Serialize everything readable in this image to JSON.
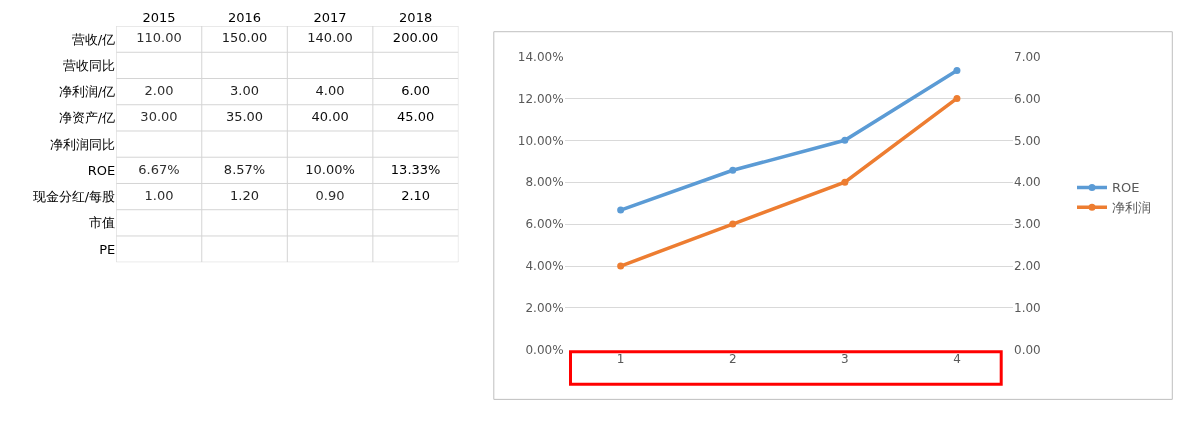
{
  "chart_data": [
    {
      "type": "heatmap",
      "categories": [
        "2015",
        "2016",
        "2017",
        "2018"
      ],
      "y_categories": [
        "营收/亿",
        "营收同比",
        "净利润/亿",
        "净资产/亿",
        "净利润同比",
        "ROE",
        "现金分红/每股",
        "市值",
        "PE"
      ],
      "cells": [
        [
          110,
          150,
          140,
          200
        ],
        [
          null,
          null,
          null,
          null
        ],
        [
          2,
          3,
          4,
          6
        ],
        [
          30,
          35,
          40,
          45
        ],
        [
          null,
          null,
          null,
          null
        ],
        [
          6.67,
          8.57,
          10,
          13.33
        ],
        [
          1,
          1.2,
          0.9,
          2.1
        ],
        [
          null,
          null,
          null,
          null
        ],
        [
          null,
          null,
          null,
          null
        ]
      ],
      "cell_labels": [
        [
          "110.00",
          "150.00",
          "140.00",
          "200.00"
        ],
        [
          null,
          null,
          null,
          null
        ],
        [
          "2.00",
          "3.00",
          "4.00",
          "6.00"
        ],
        [
          "30.00",
          "35.00",
          "40.00",
          "45.00"
        ],
        [
          null,
          null,
          null,
          null
        ],
        [
          "6.67%",
          "8.57%",
          "10.00%",
          "13.33%"
        ],
        [
          "1.00",
          "1.20",
          "0.90",
          "2.10"
        ],
        [
          null,
          null,
          null,
          null
        ],
        [
          null,
          null,
          null,
          null
        ]
      ],
      "grid": true
    },
    {
      "type": "line",
      "categories": [
        "1",
        "2",
        "3",
        "4"
      ],
      "series": [
        {
          "name": "ROE",
          "color": "#5b9bd5",
          "values": [
            6.67,
            8.57,
            10,
            13.33
          ]
        },
        {
          "name": "净利润",
          "color": "#ed7d31",
          "values": [
            2,
            3,
            4,
            6
          ],
          "axis": "y2"
        }
      ],
      "ylim": [
        0,
        14
      ],
      "yticks": [
        {
          "value": 0,
          "label": "0.00%"
        },
        {
          "value": 2,
          "label": "2.00%"
        },
        {
          "value": 4,
          "label": "4.00%"
        },
        {
          "value": 6,
          "label": "6.00%"
        },
        {
          "value": 8,
          "label": "8.00%"
        },
        {
          "value": 10,
          "label": "10.00%"
        },
        {
          "value": 12,
          "label": "12.00%"
        },
        {
          "value": 14,
          "label": "14.00%"
        }
      ],
      "y2lim": [
        0,
        7
      ],
      "y2ticks": [
        {
          "value": 0,
          "label": "0.00"
        },
        {
          "value": 1,
          "label": "1.00"
        },
        {
          "value": 2,
          "label": "2.00"
        },
        {
          "value": 3,
          "label": "3.00"
        },
        {
          "value": 4,
          "label": "4.00"
        },
        {
          "value": 5,
          "label": "5.00"
        },
        {
          "value": 6,
          "label": "6.00"
        },
        {
          "value": 7,
          "label": "7.00"
        }
      ],
      "grid": "y",
      "legend": "right",
      "marker": "circle",
      "line_style": "solid"
    }
  ]
}
